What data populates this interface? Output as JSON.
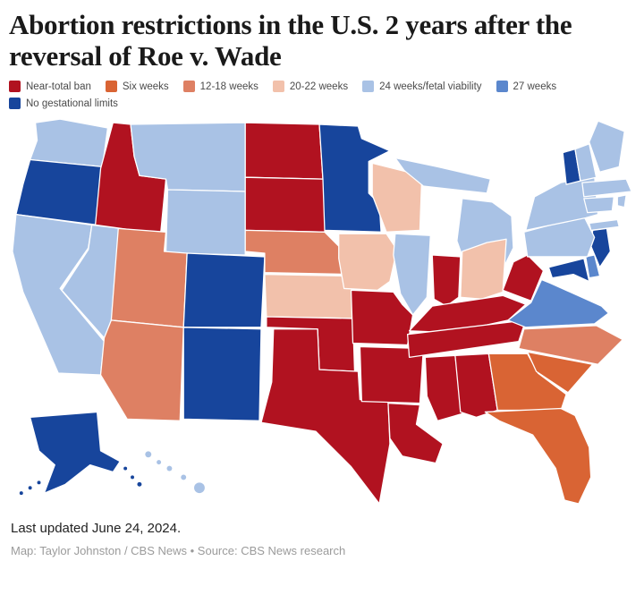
{
  "title": {
    "text": "Abortion restrictions in the U.S. 2 years after the reversal of Roe v. Wade",
    "color": "#1a1a1a"
  },
  "legend": {
    "items": [
      {
        "id": "near_total_ban",
        "label": "Near-total ban",
        "color": "#b11220"
      },
      {
        "id": "six_weeks",
        "label": "Six weeks",
        "color": "#d96434"
      },
      {
        "id": "12_18_weeks",
        "label": "12-18 weeks",
        "color": "#de8063"
      },
      {
        "id": "20_22_weeks",
        "label": "20-22 weeks",
        "color": "#f2c1ab"
      },
      {
        "id": "24_weeks_fetal_viability",
        "label": "24 weeks/fetal viability",
        "color": "#a9c2e5"
      },
      {
        "id": "27_weeks",
        "label": "27 weeks",
        "color": "#5b87cd"
      },
      {
        "id": "no_gestational_limits",
        "label": "No gestational limits",
        "color": "#17459c"
      }
    ]
  },
  "chart_data": {
    "type": "choropleth_map",
    "region": "United States",
    "title": "Abortion restrictions in the U.S. 2 years after the reversal of Roe v. Wade",
    "legend_position": "top",
    "categories": [
      "Near-total ban",
      "Six weeks",
      "12-18 weeks",
      "20-22 weeks",
      "24 weeks/fetal viability",
      "27 weeks",
      "No gestational limits"
    ],
    "states": [
      {
        "id": "WA",
        "name": "Washington",
        "category": "24_weeks_fetal_viability"
      },
      {
        "id": "OR",
        "name": "Oregon",
        "category": "no_gestational_limits"
      },
      {
        "id": "CA",
        "name": "California",
        "category": "24_weeks_fetal_viability"
      },
      {
        "id": "NV",
        "name": "Nevada",
        "category": "24_weeks_fetal_viability"
      },
      {
        "id": "ID",
        "name": "Idaho",
        "category": "near_total_ban"
      },
      {
        "id": "MT",
        "name": "Montana",
        "category": "24_weeks_fetal_viability"
      },
      {
        "id": "WY",
        "name": "Wyoming",
        "category": "24_weeks_fetal_viability"
      },
      {
        "id": "UT",
        "name": "Utah",
        "category": "12_18_weeks"
      },
      {
        "id": "CO",
        "name": "Colorado",
        "category": "no_gestational_limits"
      },
      {
        "id": "AZ",
        "name": "Arizona",
        "category": "12_18_weeks"
      },
      {
        "id": "NM",
        "name": "New Mexico",
        "category": "no_gestational_limits"
      },
      {
        "id": "ND",
        "name": "North Dakota",
        "category": "near_total_ban"
      },
      {
        "id": "SD",
        "name": "South Dakota",
        "category": "near_total_ban"
      },
      {
        "id": "NE",
        "name": "Nebraska",
        "category": "12_18_weeks"
      },
      {
        "id": "KS",
        "name": "Kansas",
        "category": "20_22_weeks"
      },
      {
        "id": "OK",
        "name": "Oklahoma",
        "category": "near_total_ban"
      },
      {
        "id": "TX",
        "name": "Texas",
        "category": "near_total_ban"
      },
      {
        "id": "MN",
        "name": "Minnesota",
        "category": "no_gestational_limits"
      },
      {
        "id": "IA",
        "name": "Iowa",
        "category": "20_22_weeks"
      },
      {
        "id": "MO",
        "name": "Missouri",
        "category": "near_total_ban"
      },
      {
        "id": "AR",
        "name": "Arkansas",
        "category": "near_total_ban"
      },
      {
        "id": "LA",
        "name": "Louisiana",
        "category": "near_total_ban"
      },
      {
        "id": "WI",
        "name": "Wisconsin",
        "category": "20_22_weeks"
      },
      {
        "id": "IL",
        "name": "Illinois",
        "category": "24_weeks_fetal_viability"
      },
      {
        "id": "MI",
        "name": "Michigan",
        "category": "24_weeks_fetal_viability"
      },
      {
        "id": "IN",
        "name": "Indiana",
        "category": "near_total_ban"
      },
      {
        "id": "OH",
        "name": "Ohio",
        "category": "20_22_weeks"
      },
      {
        "id": "KY",
        "name": "Kentucky",
        "category": "near_total_ban"
      },
      {
        "id": "TN",
        "name": "Tennessee",
        "category": "near_total_ban"
      },
      {
        "id": "MS",
        "name": "Mississippi",
        "category": "near_total_ban"
      },
      {
        "id": "AL",
        "name": "Alabama",
        "category": "near_total_ban"
      },
      {
        "id": "GA",
        "name": "Georgia",
        "category": "six_weeks"
      },
      {
        "id": "FL",
        "name": "Florida",
        "category": "six_weeks"
      },
      {
        "id": "SC",
        "name": "South Carolina",
        "category": "six_weeks"
      },
      {
        "id": "NC",
        "name": "North Carolina",
        "category": "12_18_weeks"
      },
      {
        "id": "VA",
        "name": "Virginia",
        "category": "27_weeks"
      },
      {
        "id": "WV",
        "name": "West Virginia",
        "category": "near_total_ban"
      },
      {
        "id": "MD",
        "name": "Maryland",
        "category": "no_gestational_limits"
      },
      {
        "id": "DE",
        "name": "Delaware",
        "category": "27_weeks"
      },
      {
        "id": "NJ",
        "name": "New Jersey",
        "category": "no_gestational_limits"
      },
      {
        "id": "PA",
        "name": "Pennsylvania",
        "category": "24_weeks_fetal_viability"
      },
      {
        "id": "NY",
        "name": "New York",
        "category": "24_weeks_fetal_viability"
      },
      {
        "id": "VT",
        "name": "Vermont",
        "category": "no_gestational_limits"
      },
      {
        "id": "NH",
        "name": "New Hampshire",
        "category": "24_weeks_fetal_viability"
      },
      {
        "id": "ME",
        "name": "Maine",
        "category": "24_weeks_fetal_viability"
      },
      {
        "id": "MA",
        "name": "Massachusetts",
        "category": "24_weeks_fetal_viability"
      },
      {
        "id": "RI",
        "name": "Rhode Island",
        "category": "24_weeks_fetal_viability"
      },
      {
        "id": "CT",
        "name": "Connecticut",
        "category": "24_weeks_fetal_viability"
      },
      {
        "id": "AK",
        "name": "Alaska",
        "category": "no_gestational_limits"
      },
      {
        "id": "HI",
        "name": "Hawaii",
        "category": "24_weeks_fetal_viability"
      }
    ]
  },
  "footer": {
    "updated": "Last updated June 24, 2024.",
    "credit": "Map: Taylor Johnston / CBS News • Source: CBS News research"
  }
}
